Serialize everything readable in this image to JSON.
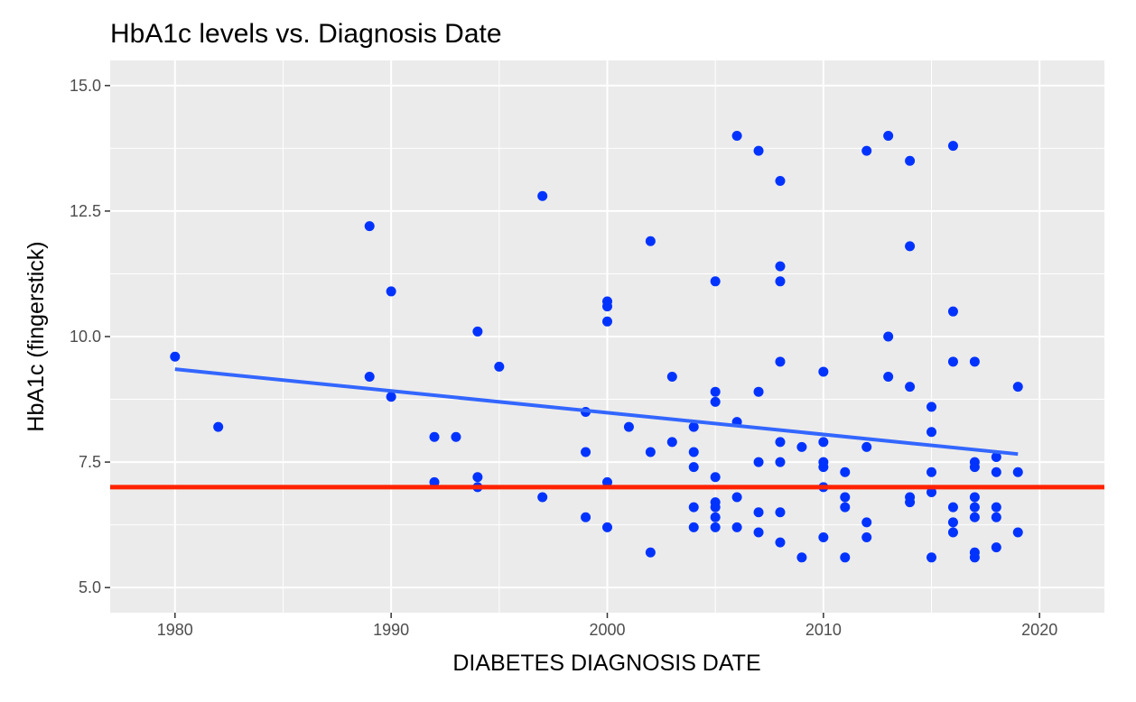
{
  "chart_data": {
    "type": "scatter",
    "title": "HbA1c levels vs. Diagnosis Date",
    "xlabel": "DIABETES DIAGNOSIS DATE",
    "ylabel": "HbA1c (fingerstick)",
    "xlim": [
      1977,
      2023
    ],
    "ylim": [
      4.5,
      15.5
    ],
    "x_ticks": [
      1980,
      1990,
      2000,
      2010,
      2020
    ],
    "x_tick_labels": [
      "1980",
      "1990",
      "2000",
      "2010",
      "2020"
    ],
    "x_minor_ticks": [
      1985,
      1995,
      2005,
      2015
    ],
    "y_ticks": [
      5,
      7.5,
      10,
      12.5,
      15
    ],
    "y_tick_labels": [
      "5.0",
      "7.5",
      "10.0",
      "12.5",
      "15.0"
    ],
    "y_minor_ticks": [
      6.25,
      8.75,
      11.25,
      13.75
    ],
    "grid": true,
    "colors": {
      "panel": "#ebebeb",
      "grid": "#ffffff",
      "points": "#0033ff",
      "trend": "#3366ff",
      "reference": "#ff2200"
    },
    "points": [
      [
        1980,
        9.6
      ],
      [
        1982,
        8.2
      ],
      [
        1989,
        12.2
      ],
      [
        1989,
        9.2
      ],
      [
        1990,
        10.9
      ],
      [
        1990,
        8.8
      ],
      [
        1992,
        8.0
      ],
      [
        1992,
        7.1
      ],
      [
        1993,
        8.0
      ],
      [
        1994,
        10.1
      ],
      [
        1994,
        7.2
      ],
      [
        1994,
        7.0
      ],
      [
        1995,
        9.4
      ],
      [
        1997,
        12.8
      ],
      [
        1997,
        6.8
      ],
      [
        1999,
        8.5
      ],
      [
        1999,
        7.7
      ],
      [
        1999,
        6.4
      ],
      [
        2000,
        10.7
      ],
      [
        2000,
        10.6
      ],
      [
        2000,
        10.3
      ],
      [
        2000,
        7.1
      ],
      [
        2000,
        6.2
      ],
      [
        2001,
        8.2
      ],
      [
        2002,
        11.9
      ],
      [
        2002,
        7.7
      ],
      [
        2002,
        5.7
      ],
      [
        2003,
        9.2
      ],
      [
        2003,
        7.9
      ],
      [
        2004,
        8.2
      ],
      [
        2004,
        7.7
      ],
      [
        2004,
        7.4
      ],
      [
        2004,
        6.6
      ],
      [
        2004,
        6.2
      ],
      [
        2005,
        11.1
      ],
      [
        2005,
        8.9
      ],
      [
        2005,
        8.7
      ],
      [
        2005,
        7.2
      ],
      [
        2005,
        6.7
      ],
      [
        2005,
        6.6
      ],
      [
        2005,
        6.4
      ],
      [
        2005,
        6.2
      ],
      [
        2006,
        14.0
      ],
      [
        2006,
        8.3
      ],
      [
        2006,
        6.8
      ],
      [
        2006,
        6.2
      ],
      [
        2007,
        13.7
      ],
      [
        2007,
        8.9
      ],
      [
        2007,
        7.5
      ],
      [
        2007,
        6.5
      ],
      [
        2007,
        6.1
      ],
      [
        2008,
        13.1
      ],
      [
        2008,
        11.4
      ],
      [
        2008,
        11.1
      ],
      [
        2008,
        9.5
      ],
      [
        2008,
        7.9
      ],
      [
        2008,
        7.5
      ],
      [
        2008,
        6.5
      ],
      [
        2008,
        5.9
      ],
      [
        2009,
        7.8
      ],
      [
        2009,
        5.6
      ],
      [
        2010,
        9.3
      ],
      [
        2010,
        7.9
      ],
      [
        2010,
        7.5
      ],
      [
        2010,
        7.4
      ],
      [
        2010,
        7.0
      ],
      [
        2010,
        6.0
      ],
      [
        2011,
        7.3
      ],
      [
        2011,
        6.8
      ],
      [
        2011,
        6.6
      ],
      [
        2011,
        5.6
      ],
      [
        2012,
        13.7
      ],
      [
        2012,
        7.8
      ],
      [
        2012,
        6.3
      ],
      [
        2012,
        6.0
      ],
      [
        2013,
        14.0
      ],
      [
        2013,
        10.0
      ],
      [
        2013,
        9.2
      ],
      [
        2014,
        13.5
      ],
      [
        2014,
        11.8
      ],
      [
        2014,
        9.0
      ],
      [
        2014,
        6.8
      ],
      [
        2014,
        6.7
      ],
      [
        2015,
        8.6
      ],
      [
        2015,
        8.1
      ],
      [
        2015,
        7.3
      ],
      [
        2015,
        6.9
      ],
      [
        2015,
        5.6
      ],
      [
        2016,
        13.8
      ],
      [
        2016,
        10.5
      ],
      [
        2016,
        9.5
      ],
      [
        2016,
        6.6
      ],
      [
        2016,
        6.3
      ],
      [
        2016,
        6.1
      ],
      [
        2017,
        9.5
      ],
      [
        2017,
        7.5
      ],
      [
        2017,
        7.4
      ],
      [
        2017,
        6.8
      ],
      [
        2017,
        6.6
      ],
      [
        2017,
        6.4
      ],
      [
        2017,
        5.7
      ],
      [
        2017,
        5.6
      ],
      [
        2018,
        7.6
      ],
      [
        2018,
        7.3
      ],
      [
        2018,
        6.6
      ],
      [
        2018,
        6.4
      ],
      [
        2018,
        5.8
      ],
      [
        2019,
        9.0
      ],
      [
        2019,
        7.3
      ],
      [
        2019,
        6.1
      ]
    ],
    "trend_line": {
      "x": [
        1980,
        2019
      ],
      "y": [
        9.35,
        7.66
      ]
    },
    "reference_line": {
      "y": 7.0
    }
  }
}
